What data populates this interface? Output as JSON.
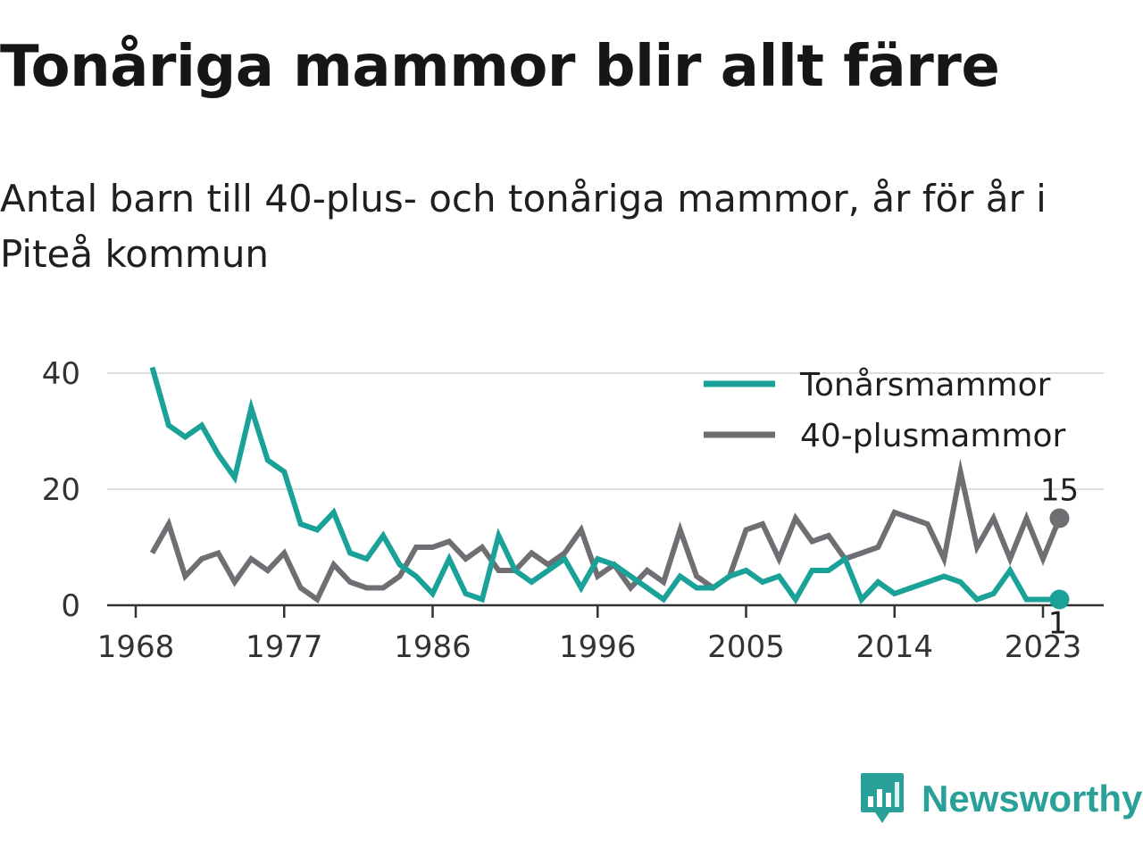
{
  "title": "Tonåriga mammor blir allt färre",
  "subtitle": "Antal barn till 40-plus- och tonåriga mammor, år för år i Piteå kommun",
  "logo": {
    "name": "Newsworthy",
    "icon": "newsworthy-chart-bubble-icon"
  },
  "chart_data": {
    "type": "line",
    "x": [
      1969,
      1970,
      1971,
      1972,
      1973,
      1974,
      1975,
      1976,
      1977,
      1978,
      1979,
      1980,
      1981,
      1982,
      1983,
      1984,
      1985,
      1986,
      1987,
      1988,
      1989,
      1990,
      1991,
      1992,
      1993,
      1994,
      1995,
      1996,
      1997,
      1998,
      1999,
      2000,
      2001,
      2002,
      2003,
      2004,
      2005,
      2006,
      2007,
      2008,
      2009,
      2010,
      2011,
      2012,
      2013,
      2014,
      2015,
      2016,
      2017,
      2018,
      2019,
      2020,
      2021,
      2022,
      2023,
      2024
    ],
    "x_ticks": [
      "1968",
      "1977",
      "1986",
      "1996",
      "2005",
      "2014",
      "2023"
    ],
    "y_ticks": [
      "0",
      "20",
      "40"
    ],
    "ylim": [
      0,
      42
    ],
    "grid": true,
    "legend_position": "top-right",
    "series": [
      {
        "name": "Tonårsmammor",
        "color": "#1aa198",
        "values": [
          41,
          31,
          29,
          31,
          26,
          22,
          34,
          25,
          23,
          14,
          13,
          16,
          9,
          8,
          12,
          7,
          5,
          2,
          8,
          2,
          1,
          12,
          6,
          4,
          6,
          8,
          3,
          8,
          7,
          5,
          3,
          1,
          5,
          3,
          3,
          5,
          6,
          4,
          5,
          1,
          6,
          6,
          8,
          1,
          4,
          2,
          3,
          4,
          5,
          4,
          1,
          2,
          6,
          1,
          1,
          1
        ],
        "end_label": "1"
      },
      {
        "name": "40-plusmammor",
        "color": "#6e6e73",
        "values": [
          9,
          14,
          5,
          8,
          9,
          4,
          8,
          6,
          9,
          3,
          1,
          7,
          4,
          3,
          3,
          5,
          10,
          10,
          11,
          8,
          10,
          6,
          6,
          9,
          7,
          9,
          13,
          5,
          7,
          3,
          6,
          4,
          13,
          5,
          3,
          5,
          13,
          14,
          8,
          15,
          11,
          12,
          8,
          9,
          10,
          16,
          15,
          14,
          8,
          23,
          10,
          15,
          8,
          15,
          8,
          15
        ],
        "end_label": "15"
      }
    ]
  }
}
